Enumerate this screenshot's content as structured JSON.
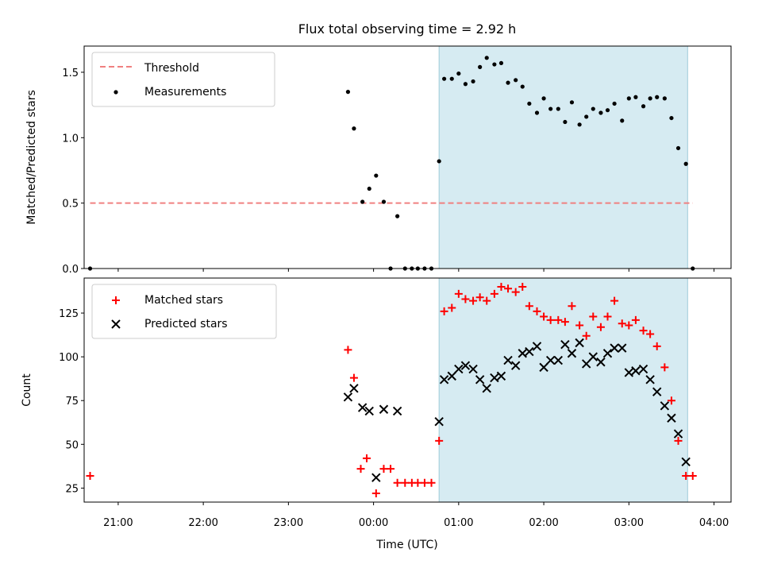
{
  "chart_data": [
    {
      "type": "scatter",
      "title": "Flux total observing time = 2.92 h",
      "xlabel": "",
      "ylabel": "Matched/Predicted stars",
      "xlim": [
        -3.4,
        4.2
      ],
      "ylim": [
        0,
        1.7
      ],
      "yticks": [
        0.0,
        0.5,
        1.0,
        1.5
      ],
      "ytick_labels": [
        "0.0",
        "0.5",
        "1.0",
        "1.5"
      ],
      "grid": false,
      "legend_position": "top-left",
      "shaded_span": [
        0.77,
        3.69
      ],
      "threshold": {
        "name": "Threshold",
        "y": 0.5,
        "x": [
          -3.33,
          3.75
        ],
        "color": "#f08080"
      },
      "series": [
        {
          "name": "Measurements",
          "color": "#000000",
          "marker": "dot",
          "points": [
            [
              -3.33,
              0.0
            ],
            [
              -0.3,
              1.35
            ],
            [
              -0.23,
              1.07
            ],
            [
              -0.13,
              0.51
            ],
            [
              -0.05,
              0.61
            ],
            [
              0.03,
              0.71
            ],
            [
              0.12,
              0.51
            ],
            [
              0.2,
              0.0
            ],
            [
              0.28,
              0.4
            ],
            [
              0.37,
              0.0
            ],
            [
              0.45,
              0.0
            ],
            [
              0.52,
              0.0
            ],
            [
              0.6,
              0.0
            ],
            [
              0.68,
              0.0
            ],
            [
              0.77,
              0.82
            ],
            [
              0.83,
              1.45
            ],
            [
              0.92,
              1.45
            ],
            [
              1.0,
              1.49
            ],
            [
              1.08,
              1.41
            ],
            [
              1.17,
              1.43
            ],
            [
              1.25,
              1.54
            ],
            [
              1.33,
              1.61
            ],
            [
              1.42,
              1.56
            ],
            [
              1.5,
              1.57
            ],
            [
              1.58,
              1.42
            ],
            [
              1.67,
              1.44
            ],
            [
              1.75,
              1.39
            ],
            [
              1.83,
              1.26
            ],
            [
              1.92,
              1.19
            ],
            [
              2.0,
              1.3
            ],
            [
              2.08,
              1.22
            ],
            [
              2.17,
              1.22
            ],
            [
              2.25,
              1.12
            ],
            [
              2.33,
              1.27
            ],
            [
              2.42,
              1.1
            ],
            [
              2.5,
              1.16
            ],
            [
              2.58,
              1.22
            ],
            [
              2.67,
              1.19
            ],
            [
              2.75,
              1.21
            ],
            [
              2.83,
              1.26
            ],
            [
              2.92,
              1.13
            ],
            [
              3.0,
              1.3
            ],
            [
              3.08,
              1.31
            ],
            [
              3.17,
              1.24
            ],
            [
              3.25,
              1.3
            ],
            [
              3.33,
              1.31
            ],
            [
              3.42,
              1.3
            ],
            [
              3.5,
              1.15
            ],
            [
              3.58,
              0.92
            ],
            [
              3.67,
              0.8
            ],
            [
              3.75,
              0.0
            ]
          ]
        }
      ]
    },
    {
      "type": "scatter",
      "title": "",
      "xlabel": "Time (UTC)",
      "ylabel": "Count",
      "xlim": [
        -3.4,
        4.2
      ],
      "ylim": [
        17,
        145
      ],
      "xticks": [
        -3,
        -2,
        -1,
        0,
        1,
        2,
        3,
        4
      ],
      "xtick_labels": [
        "21:00",
        "22:00",
        "23:00",
        "00:00",
        "01:00",
        "02:00",
        "03:00",
        "04:00"
      ],
      "yticks": [
        25,
        50,
        75,
        100,
        125
      ],
      "ytick_labels": [
        "25",
        "50",
        "75",
        "100",
        "125"
      ],
      "grid": false,
      "legend_position": "top-left",
      "shaded_span": [
        0.77,
        3.69
      ],
      "series": [
        {
          "name": "Matched stars",
          "color": "#ff0000",
          "marker": "plus",
          "points": [
            [
              -3.33,
              32
            ],
            [
              -0.3,
              104
            ],
            [
              -0.23,
              88
            ],
            [
              -0.15,
              36
            ],
            [
              -0.08,
              42
            ],
            [
              0.03,
              22
            ],
            [
              0.12,
              36
            ],
            [
              0.2,
              36
            ],
            [
              0.28,
              28
            ],
            [
              0.37,
              28
            ],
            [
              0.45,
              28
            ],
            [
              0.52,
              28
            ],
            [
              0.6,
              28
            ],
            [
              0.68,
              28
            ],
            [
              0.77,
              52
            ],
            [
              0.83,
              126
            ],
            [
              0.92,
              128
            ],
            [
              1.0,
              136
            ],
            [
              1.08,
              133
            ],
            [
              1.17,
              132
            ],
            [
              1.25,
              134
            ],
            [
              1.33,
              132
            ],
            [
              1.42,
              136
            ],
            [
              1.5,
              140
            ],
            [
              1.58,
              139
            ],
            [
              1.67,
              137
            ],
            [
              1.75,
              140
            ],
            [
              1.83,
              129
            ],
            [
              1.92,
              126
            ],
            [
              2.0,
              123
            ],
            [
              2.08,
              121
            ],
            [
              2.17,
              121
            ],
            [
              2.25,
              120
            ],
            [
              2.33,
              129
            ],
            [
              2.42,
              118
            ],
            [
              2.5,
              112
            ],
            [
              2.58,
              123
            ],
            [
              2.67,
              117
            ],
            [
              2.75,
              123
            ],
            [
              2.83,
              132
            ],
            [
              2.92,
              119
            ],
            [
              3.0,
              118
            ],
            [
              3.08,
              121
            ],
            [
              3.17,
              115
            ],
            [
              3.25,
              113
            ],
            [
              3.33,
              106
            ],
            [
              3.42,
              94
            ],
            [
              3.5,
              75
            ],
            [
              3.58,
              52
            ],
            [
              3.67,
              32
            ],
            [
              3.75,
              32
            ]
          ]
        },
        {
          "name": "Predicted stars",
          "color": "#000000",
          "marker": "x",
          "points": [
            [
              -0.3,
              77
            ],
            [
              -0.23,
              82
            ],
            [
              -0.13,
              71
            ],
            [
              -0.05,
              69
            ],
            [
              0.03,
              31
            ],
            [
              0.12,
              70
            ],
            [
              0.28,
              69
            ],
            [
              0.77,
              63
            ],
            [
              0.83,
              87
            ],
            [
              0.92,
              89
            ],
            [
              1.0,
              93
            ],
            [
              1.08,
              95
            ],
            [
              1.17,
              93
            ],
            [
              1.25,
              87
            ],
            [
              1.33,
              82
            ],
            [
              1.42,
              88
            ],
            [
              1.5,
              89
            ],
            [
              1.58,
              98
            ],
            [
              1.67,
              95
            ],
            [
              1.75,
              102
            ],
            [
              1.83,
              103
            ],
            [
              1.92,
              106
            ],
            [
              2.0,
              94
            ],
            [
              2.08,
              98
            ],
            [
              2.17,
              98
            ],
            [
              2.25,
              107
            ],
            [
              2.33,
              102
            ],
            [
              2.42,
              108
            ],
            [
              2.5,
              96
            ],
            [
              2.58,
              100
            ],
            [
              2.67,
              97
            ],
            [
              2.75,
              102
            ],
            [
              2.83,
              105
            ],
            [
              2.92,
              105
            ],
            [
              3.0,
              91
            ],
            [
              3.08,
              92
            ],
            [
              3.17,
              93
            ],
            [
              3.25,
              87
            ],
            [
              3.33,
              80
            ],
            [
              3.42,
              72
            ],
            [
              3.5,
              65
            ],
            [
              3.58,
              56
            ],
            [
              3.67,
              40
            ]
          ]
        }
      ]
    }
  ]
}
